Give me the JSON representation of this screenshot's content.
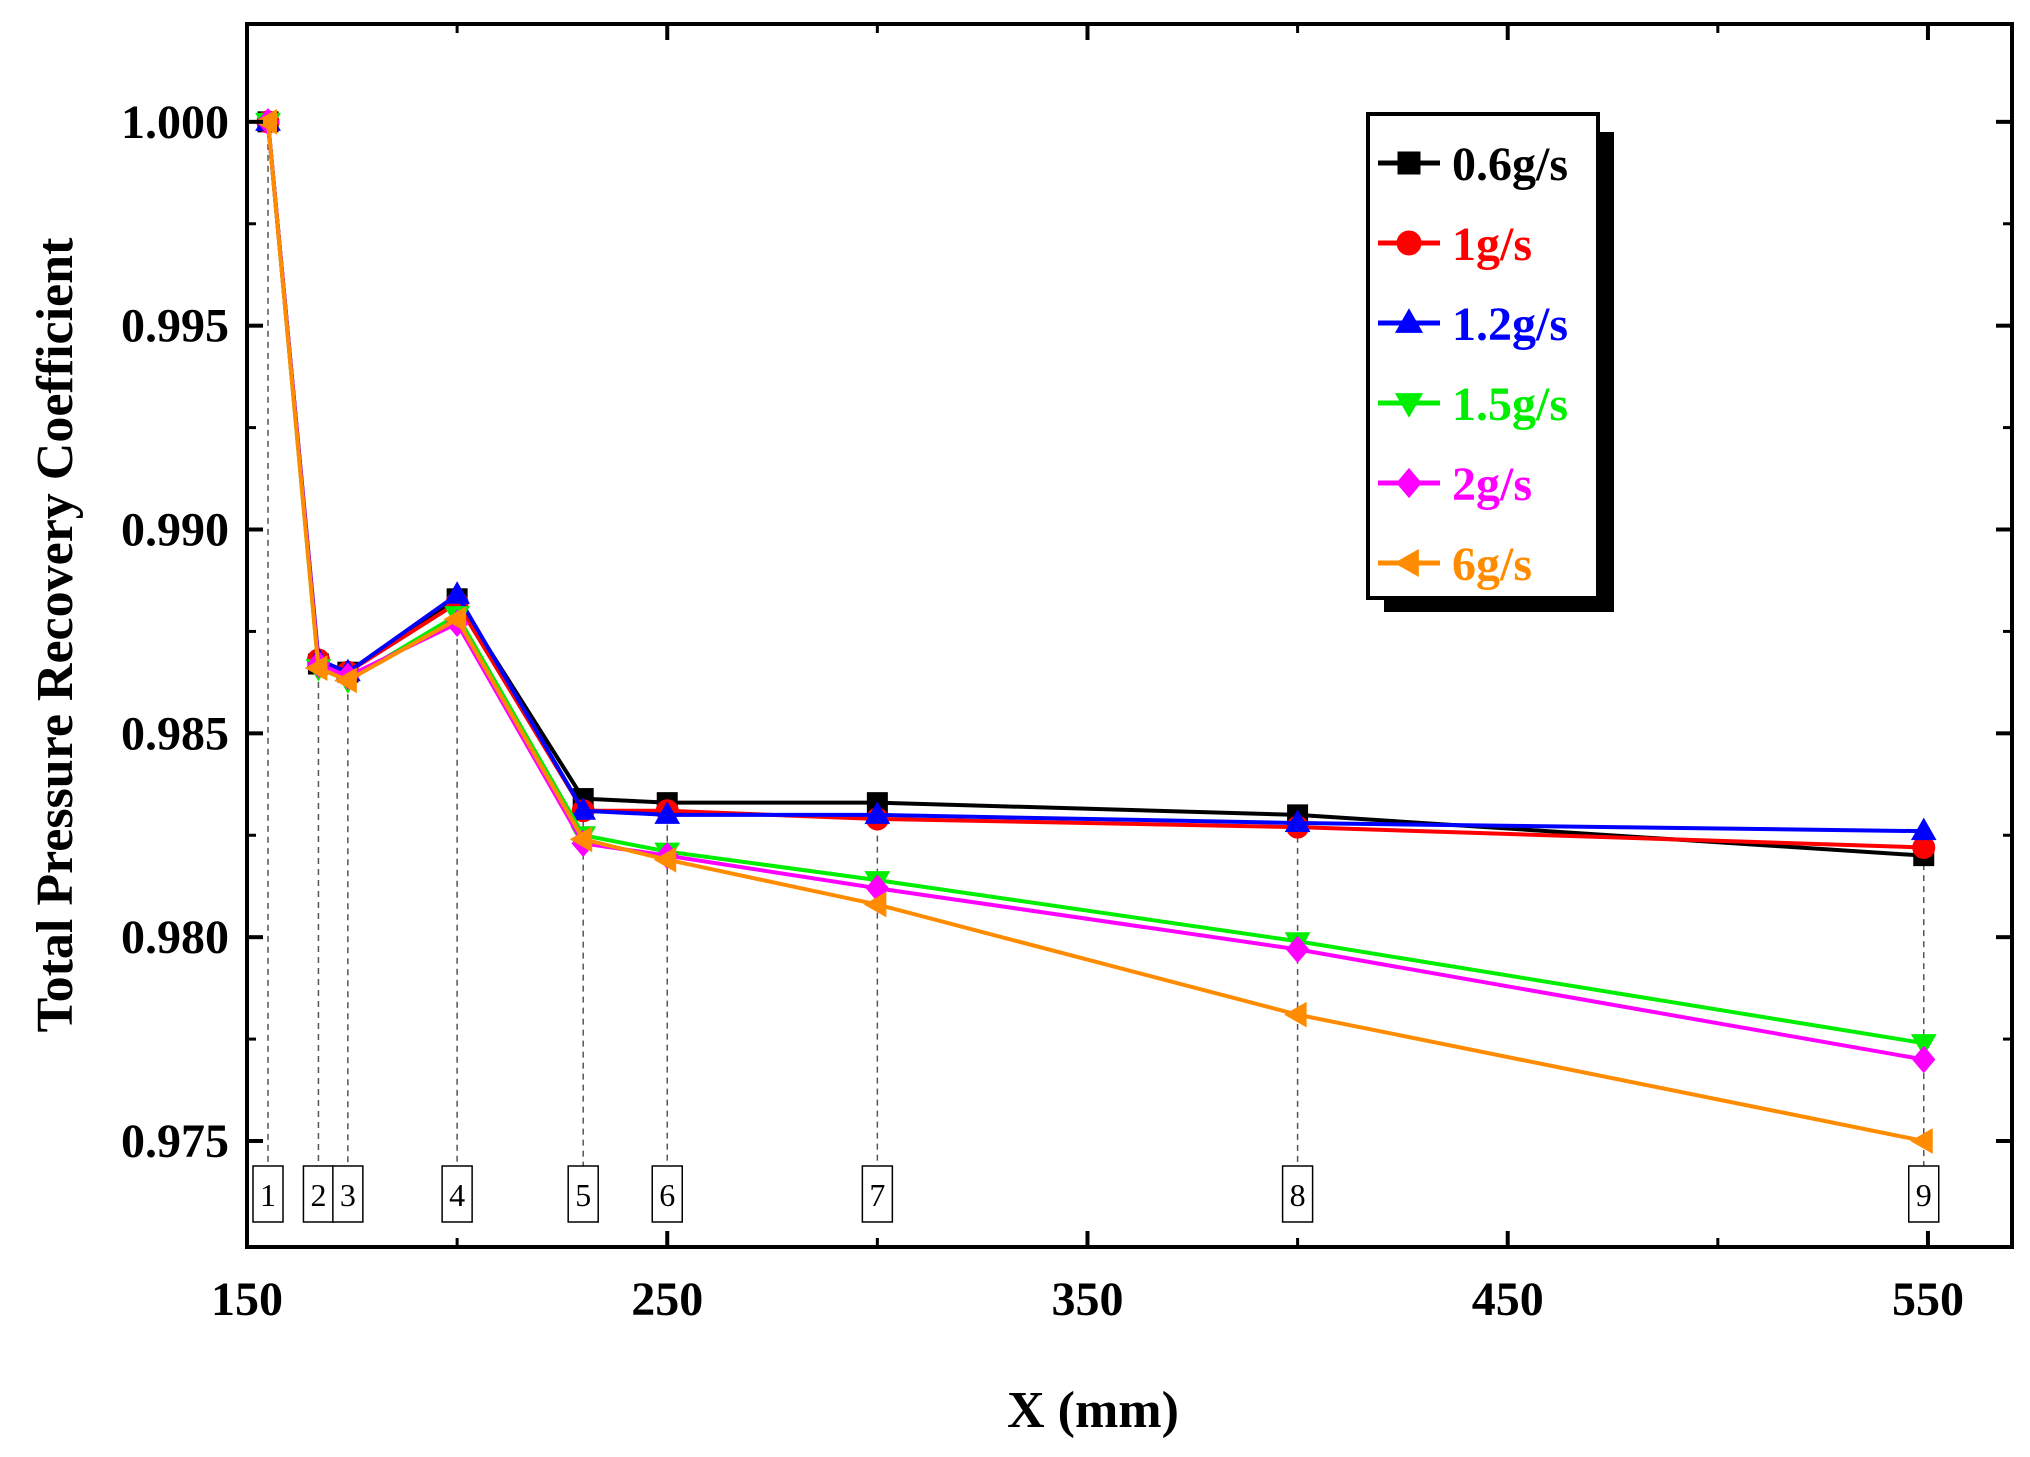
{
  "chart_data": {
    "type": "line",
    "title": "",
    "xlabel": "X (mm)",
    "ylabel": "Total Pressure Recovery Coefficient",
    "xlim": [
      150,
      570
    ],
    "ylim": [
      0.9724,
      1.0024
    ],
    "xticks": [
      150,
      250,
      350,
      450,
      550
    ],
    "xtick_labels": [
      "150",
      "250",
      "350",
      "450",
      "550"
    ],
    "yticks": [
      0.975,
      0.98,
      0.985,
      0.99,
      0.995,
      1.0
    ],
    "ytick_labels": [
      "0.975",
      "0.980",
      "0.985",
      "0.990",
      "0.995",
      "1.000"
    ],
    "grid": false,
    "legend_position": "top-right",
    "x": [
      155,
      167,
      174,
      200,
      230,
      250,
      300,
      400,
      549
    ],
    "measurement_points": [
      {
        "x": 155,
        "label": "1"
      },
      {
        "x": 167,
        "label": "2"
      },
      {
        "x": 174,
        "label": "3"
      },
      {
        "x": 200,
        "label": "4"
      },
      {
        "x": 230,
        "label": "5"
      },
      {
        "x": 250,
        "label": "6"
      },
      {
        "x": 300,
        "label": "7"
      },
      {
        "x": 400,
        "label": "8"
      },
      {
        "x": 549,
        "label": "9"
      }
    ],
    "series": [
      {
        "name": "0.6g/s",
        "color": "#000000",
        "marker": "square",
        "values": [
          1.0,
          0.9867,
          0.9865,
          0.9883,
          0.9834,
          0.9833,
          0.9833,
          0.983,
          0.982
        ]
      },
      {
        "name": "1g/s",
        "color": "#ff0000",
        "marker": "circle",
        "values": [
          1.0,
          0.9868,
          0.9865,
          0.9882,
          0.9831,
          0.9831,
          0.9829,
          0.9827,
          0.9822
        ]
      },
      {
        "name": "1.2g/s",
        "color": "#0000ff",
        "marker": "triangle-up",
        "values": [
          1.0,
          0.9868,
          0.9865,
          0.9884,
          0.9831,
          0.983,
          0.983,
          0.9828,
          0.9826
        ]
      },
      {
        "name": "1.5g/s",
        "color": "#00ee00",
        "marker": "triangle-down",
        "values": [
          1.0,
          0.9866,
          0.9863,
          0.9879,
          0.9825,
          0.9821,
          0.9814,
          0.9799,
          0.9774
        ]
      },
      {
        "name": "2g/s",
        "color": "#ff00ff",
        "marker": "diamond",
        "values": [
          1.0,
          0.9867,
          0.9864,
          0.9877,
          0.9823,
          0.982,
          0.9812,
          0.9797,
          0.977
        ]
      },
      {
        "name": "6g/s",
        "color": "#ff8c00",
        "marker": "triangle-left",
        "values": [
          1.0,
          0.9866,
          0.9863,
          0.9878,
          0.9824,
          0.9819,
          0.9808,
          0.9781,
          0.975
        ]
      }
    ]
  }
}
